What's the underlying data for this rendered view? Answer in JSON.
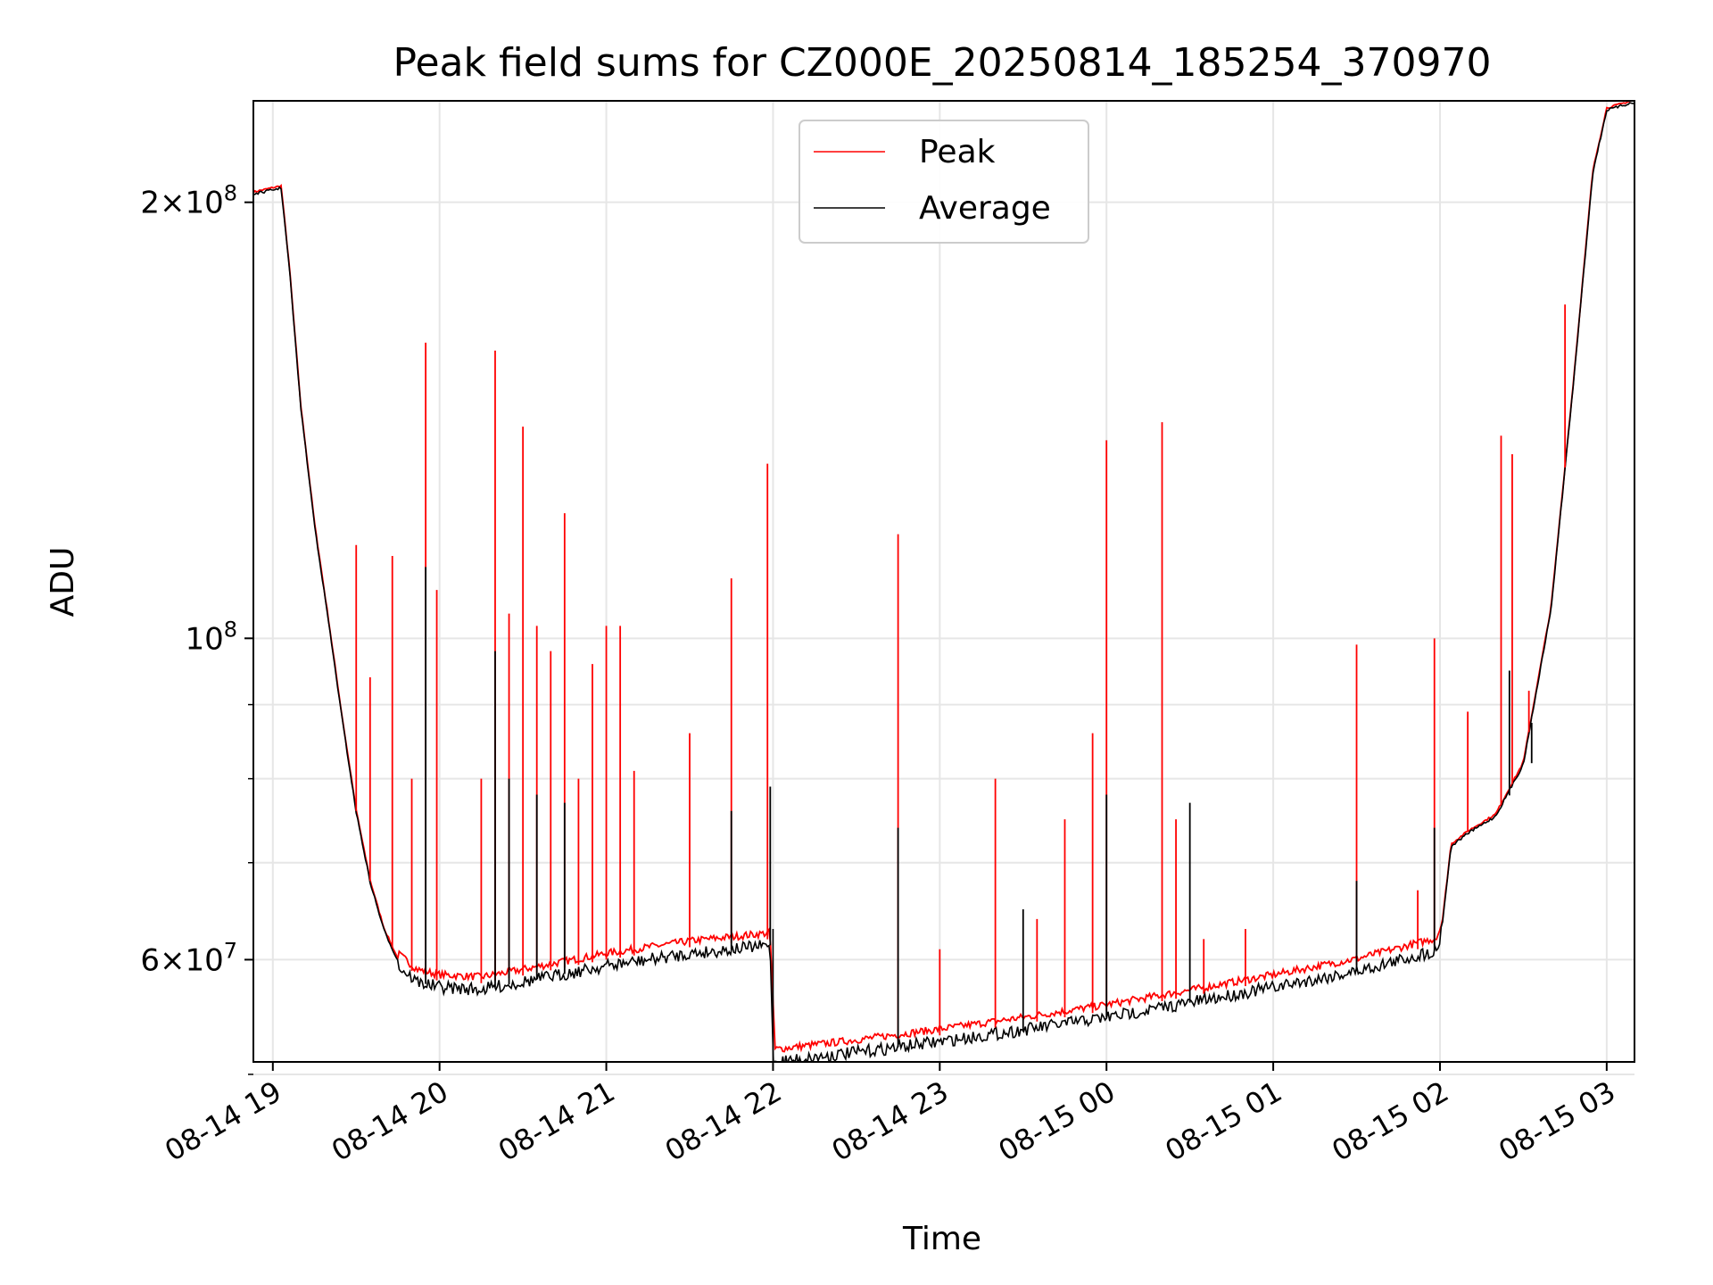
{
  "chart_data": {
    "type": "line",
    "title": "Peak field sums for CZ000E_20250814_185254_370970",
    "xlabel": "Time",
    "ylabel": "ADU",
    "yscale": "log",
    "xlim": [
      "2025-08-14 18:53",
      "2025-08-15 03:10"
    ],
    "ylim": [
      51000000,
      235000000
    ],
    "grid": true,
    "legend": {
      "position": "top-center",
      "entries": [
        "Peak",
        "Average"
      ]
    },
    "x_ticks": [
      {
        "time": "2025-08-14 19:00",
        "label": "08-14 19"
      },
      {
        "time": "2025-08-14 20:00",
        "label": "08-14 20"
      },
      {
        "time": "2025-08-14 21:00",
        "label": "08-14 21"
      },
      {
        "time": "2025-08-14 22:00",
        "label": "08-14 22"
      },
      {
        "time": "2025-08-14 23:00",
        "label": "08-14 23"
      },
      {
        "time": "2025-08-15 00:00",
        "label": "08-15 00"
      },
      {
        "time": "2025-08-15 01:00",
        "label": "08-15 01"
      },
      {
        "time": "2025-08-15 02:00",
        "label": "08-15 02"
      },
      {
        "time": "2025-08-15 03:00",
        "label": "08-15 03"
      }
    ],
    "y_ticks": [
      {
        "value": 60000000,
        "mantissa": "6",
        "exponent": "7"
      },
      {
        "value": 100000000,
        "mantissa": "",
        "exponent": "8"
      },
      {
        "value": 200000000,
        "mantissa": "2",
        "exponent": "8"
      }
    ],
    "y_minor_ticks": [
      50000000,
      70000000,
      80000000,
      90000000
    ],
    "series": [
      {
        "name": "Average",
        "color": "#000000",
        "points": [
          [
            "2025-08-14 18:53",
            203000000
          ],
          [
            "2025-08-14 19:03",
            205000000
          ],
          [
            "2025-08-14 19:06",
            180000000
          ],
          [
            "2025-08-14 19:10",
            145000000
          ],
          [
            "2025-08-14 19:15",
            120000000
          ],
          [
            "2025-08-14 19:20",
            103000000
          ],
          [
            "2025-08-14 19:25",
            88000000
          ],
          [
            "2025-08-14 19:30",
            76000000
          ],
          [
            "2025-08-14 19:35",
            68000000
          ],
          [
            "2025-08-14 19:40",
            63000000
          ],
          [
            "2025-08-14 19:45",
            60000000
          ],
          [
            "2025-08-14 19:52",
            58500000
          ],
          [
            "2025-08-14 20:00",
            58000000
          ],
          [
            "2025-08-14 20:15",
            57800000
          ],
          [
            "2025-08-14 20:30",
            58500000
          ],
          [
            "2025-08-14 21:00",
            60000000
          ],
          [
            "2025-08-14 21:30",
            61200000
          ],
          [
            "2025-08-14 21:59",
            62000000
          ],
          [
            "2025-08-14 22:00",
            51500000
          ],
          [
            "2025-08-14 22:30",
            52300000
          ],
          [
            "2025-08-14 23:00",
            53200000
          ],
          [
            "2025-08-14 23:30",
            54200000
          ],
          [
            "2025-08-15 00:00",
            55300000
          ],
          [
            "2025-08-15 00:30",
            56600000
          ],
          [
            "2025-08-15 01:00",
            58000000
          ],
          [
            "2025-08-15 01:30",
            59500000
          ],
          [
            "2025-08-15 01:59",
            61500000
          ],
          [
            "2025-08-15 02:01",
            64000000
          ],
          [
            "2025-08-15 02:04",
            72000000
          ],
          [
            "2025-08-15 02:10",
            73500000
          ],
          [
            "2025-08-15 02:20",
            75500000
          ],
          [
            "2025-08-15 02:30",
            82000000
          ],
          [
            "2025-08-15 02:40",
            105000000
          ],
          [
            "2025-08-15 02:48",
            150000000
          ],
          [
            "2025-08-15 02:55",
            210000000
          ],
          [
            "2025-08-15 03:00",
            232000000
          ],
          [
            "2025-08-15 03:10",
            235000000
          ]
        ],
        "spikes": [
          [
            "2025-08-14 19:55",
            112000000
          ],
          [
            "2025-08-14 20:20",
            98000000
          ],
          [
            "2025-08-14 20:25",
            80000000
          ],
          [
            "2025-08-14 20:35",
            78000000
          ],
          [
            "2025-08-14 20:45",
            77000000
          ],
          [
            "2025-08-14 21:45",
            76000000
          ],
          [
            "2025-08-14 21:59",
            79000000
          ],
          [
            "2025-08-14 22:45",
            74000000
          ],
          [
            "2025-08-14 23:30",
            65000000
          ],
          [
            "2025-08-15 00:00",
            78000000
          ],
          [
            "2025-08-15 00:30",
            77000000
          ],
          [
            "2025-08-15 01:30",
            68000000
          ],
          [
            "2025-08-15 01:58",
            74000000
          ],
          [
            "2025-08-15 02:25",
            95000000
          ],
          [
            "2025-08-15 02:33",
            82000000
          ]
        ]
      },
      {
        "name": "Peak",
        "color": "#ff0000",
        "spikes": [
          [
            "2025-08-14 19:30",
            116000000
          ],
          [
            "2025-08-14 19:35",
            94000000
          ],
          [
            "2025-08-14 19:43",
            114000000
          ],
          [
            "2025-08-14 19:50",
            80000000
          ],
          [
            "2025-08-14 19:55",
            160000000
          ],
          [
            "2025-08-14 19:59",
            108000000
          ],
          [
            "2025-08-14 20:15",
            80000000
          ],
          [
            "2025-08-14 20:20",
            158000000
          ],
          [
            "2025-08-14 20:25",
            104000000
          ],
          [
            "2025-08-14 20:30",
            140000000
          ],
          [
            "2025-08-14 20:35",
            102000000
          ],
          [
            "2025-08-14 20:40",
            98000000
          ],
          [
            "2025-08-14 20:45",
            122000000
          ],
          [
            "2025-08-14 20:50",
            80000000
          ],
          [
            "2025-08-14 20:55",
            96000000
          ],
          [
            "2025-08-14 21:00",
            102000000
          ],
          [
            "2025-08-14 21:05",
            102000000
          ],
          [
            "2025-08-14 21:10",
            81000000
          ],
          [
            "2025-08-14 21:30",
            86000000
          ],
          [
            "2025-08-14 21:45",
            110000000
          ],
          [
            "2025-08-14 21:58",
            132000000
          ],
          [
            "2025-08-14 22:45",
            118000000
          ],
          [
            "2025-08-14 23:00",
            61000000
          ],
          [
            "2025-08-14 23:20",
            80000000
          ],
          [
            "2025-08-14 23:35",
            64000000
          ],
          [
            "2025-08-14 23:45",
            75000000
          ],
          [
            "2025-08-14 23:55",
            86000000
          ],
          [
            "2025-08-15 00:00",
            137000000
          ],
          [
            "2025-08-15 00:20",
            141000000
          ],
          [
            "2025-08-15 00:25",
            75000000
          ],
          [
            "2025-08-15 00:35",
            62000000
          ],
          [
            "2025-08-15 00:50",
            63000000
          ],
          [
            "2025-08-15 01:30",
            99000000
          ],
          [
            "2025-08-15 01:52",
            67000000
          ],
          [
            "2025-08-15 01:58",
            100000000
          ],
          [
            "2025-08-15 02:10",
            89000000
          ],
          [
            "2025-08-15 02:22",
            138000000
          ],
          [
            "2025-08-15 02:26",
            134000000
          ],
          [
            "2025-08-15 02:32",
            92000000
          ],
          [
            "2025-08-15 02:45",
            170000000
          ]
        ]
      }
    ]
  }
}
